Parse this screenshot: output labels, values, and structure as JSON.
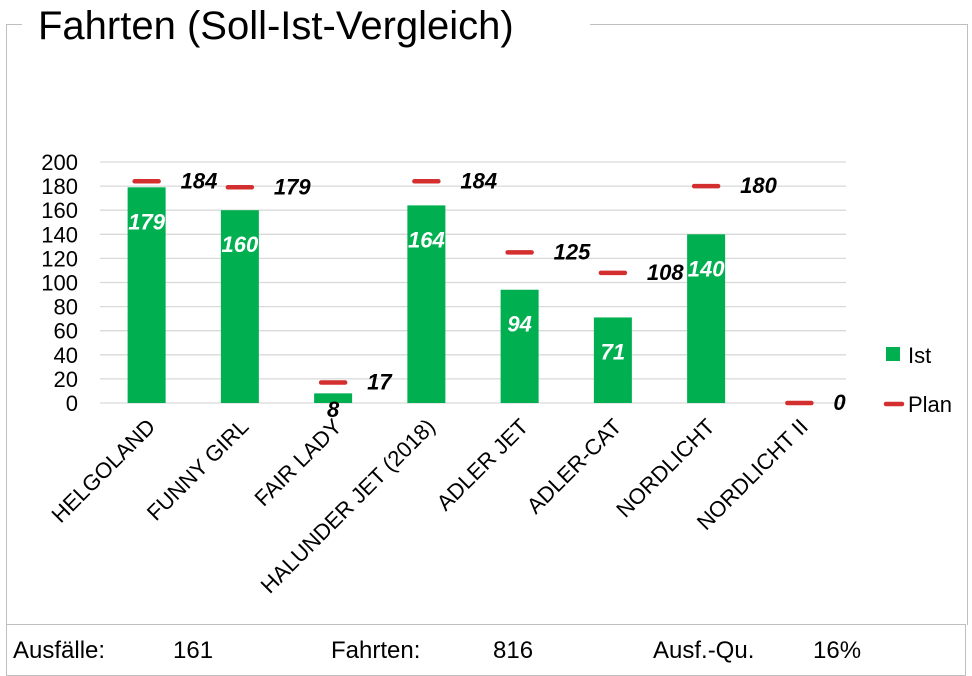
{
  "title": "Fahrten (Soll-Ist-Vergleich)",
  "colors": {
    "ist": "#00b050",
    "plan": "#d32f2f",
    "grid": "#d9d9d9",
    "frame": "#bfbfbf"
  },
  "chart_data": {
    "type": "bar",
    "title": "",
    "xlabel": "",
    "ylabel": "",
    "ylim": [
      0,
      200
    ],
    "yticks": [
      0,
      20,
      40,
      60,
      80,
      100,
      120,
      140,
      160,
      180,
      200
    ],
    "grid": true,
    "legend_position": "right",
    "categories": [
      "HELGOLAND",
      "FUNNY GIRL",
      "FAIR LADY",
      "HALUNDER JET (2018)",
      "ADLER JET",
      "ADLER-CAT",
      "NORDLICHT",
      "NORDLICHT II"
    ],
    "series": [
      {
        "name": "Ist",
        "type": "bar",
        "values": [
          179,
          160,
          8,
          164,
          94,
          71,
          140,
          null
        ],
        "labels": [
          "179",
          "160",
          "8",
          "164",
          "94",
          "71",
          "140",
          ""
        ]
      },
      {
        "name": "Plan",
        "type": "marker",
        "values": [
          184,
          179,
          17,
          184,
          125,
          108,
          180,
          0
        ],
        "labels": [
          "184",
          "179",
          "17",
          "184",
          "125",
          "108",
          "180",
          "0"
        ]
      }
    ]
  },
  "footer": {
    "ausfaelle_label": "Ausfälle:",
    "ausfaelle_value": "161",
    "fahrten_label": "Fahrten:",
    "fahrten_value": "816",
    "quote_label": "Ausf.-Qu.",
    "quote_value": "16%"
  }
}
